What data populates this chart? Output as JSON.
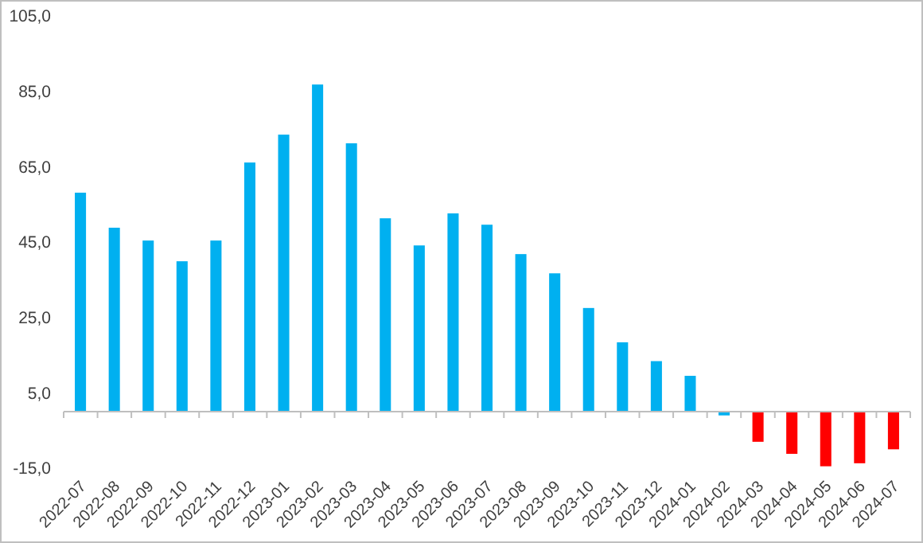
{
  "chart_data": {
    "type": "bar",
    "categories": [
      "2022-07",
      "2022-08",
      "2022-09",
      "2022-10",
      "2022-11",
      "2022-12",
      "2023-01",
      "2023-02",
      "2023-03",
      "2023-04",
      "2023-05",
      "2023-06",
      "2023-07",
      "2023-08",
      "2023-09",
      "2023-10",
      "2023-11",
      "2023-12",
      "2024-01",
      "2024-02",
      "2024-03",
      "2024-04",
      "2024-05",
      "2024-06",
      "2024-07"
    ],
    "values": [
      58.1,
      48.8,
      45.4,
      39.9,
      45.4,
      66.1,
      73.5,
      86.8,
      71.2,
      51.3,
      44.1,
      52.6,
      49.6,
      41.8,
      36.7,
      27.5,
      18.4,
      13.4,
      9.5,
      -1.0,
      -8.0,
      -11.2,
      -14.5,
      -13.7,
      -10.0
    ],
    "colors": [
      "#00b0f0",
      "#00b0f0",
      "#00b0f0",
      "#00b0f0",
      "#00b0f0",
      "#00b0f0",
      "#00b0f0",
      "#00b0f0",
      "#00b0f0",
      "#00b0f0",
      "#00b0f0",
      "#00b0f0",
      "#00b0f0",
      "#00b0f0",
      "#00b0f0",
      "#00b0f0",
      "#00b0f0",
      "#00b0f0",
      "#00b0f0",
      "#00b0f0",
      "#ff0000",
      "#ff0000",
      "#ff0000",
      "#ff0000",
      "#ff0000"
    ],
    "ylim": [
      -15,
      105
    ],
    "yticks": [
      {
        "value": -15,
        "label": "-15,0"
      },
      {
        "value": 5,
        "label": "5,0"
      },
      {
        "value": 25,
        "label": "25,0"
      },
      {
        "value": 45,
        "label": "45,0"
      },
      {
        "value": 65,
        "label": "65,0"
      },
      {
        "value": 85,
        "label": "85,0"
      },
      {
        "value": 105,
        "label": "105,0"
      }
    ],
    "grid": false
  }
}
